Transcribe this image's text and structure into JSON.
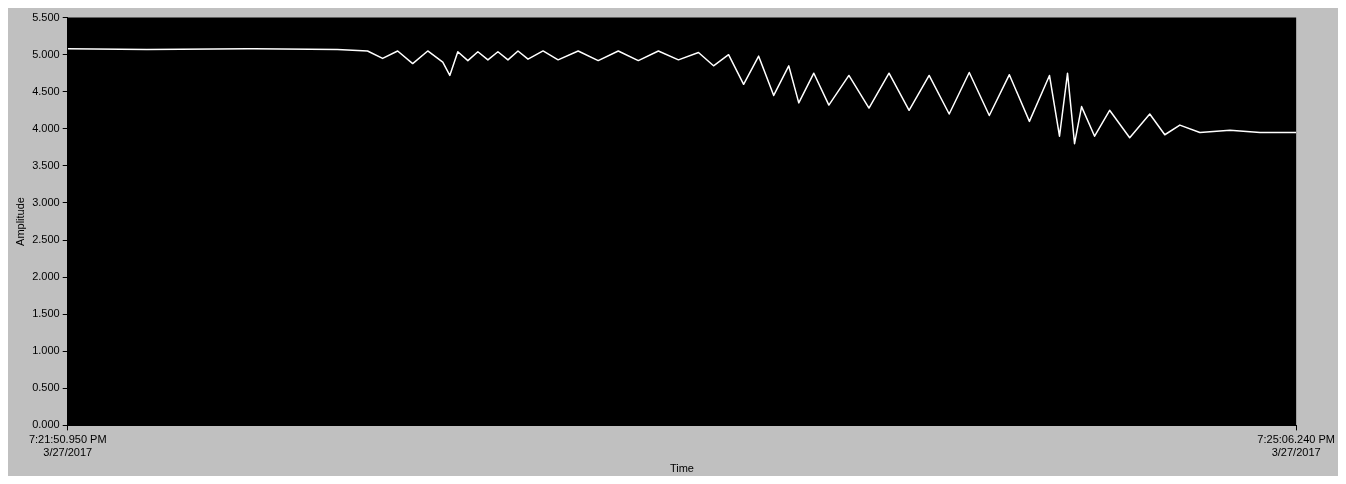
{
  "chart_data": {
    "type": "line",
    "xlabel": "Time",
    "ylabel": "Amplitude",
    "x": [
      "2017-03-27T19:21:50.950",
      "2017-03-27T19:22:03.544",
      "2017-03-27T19:22:19.486",
      "2017-03-27T19:22:33.834",
      "2017-03-27T19:22:38.617",
      "2017-03-27T19:22:41.008",
      "2017-03-27T19:22:43.399",
      "2017-03-27T19:22:45.790",
      "2017-03-27T19:22:48.182",
      "2017-03-27T19:22:50.573",
      "2017-03-27T19:22:51.689",
      "2017-03-27T19:22:52.964",
      "2017-03-27T19:22:54.559",
      "2017-03-27T19:22:56.153",
      "2017-03-27T19:22:57.747",
      "2017-03-27T19:22:59.341",
      "2017-03-27T19:23:00.935",
      "2017-03-27T19:23:02.530",
      "2017-03-27T19:23:04.124",
      "2017-03-27T19:23:06.515",
      "2017-03-27T19:23:08.906",
      "2017-03-27T19:23:12.095",
      "2017-03-27T19:23:15.283",
      "2017-03-27T19:23:18.472",
      "2017-03-27T19:23:21.660",
      "2017-03-27T19:23:24.848",
      "2017-03-27T19:23:28.037",
      "2017-03-27T19:23:31.225",
      "2017-03-27T19:23:33.616",
      "2017-03-27T19:23:36.008",
      "2017-03-27T19:23:38.399",
      "2017-03-27T19:23:40.790",
      "2017-03-27T19:23:43.182",
      "2017-03-27T19:23:45.573",
      "2017-03-27T19:23:47.167",
      "2017-03-27T19:23:49.558",
      "2017-03-27T19:23:51.950",
      "2017-03-27T19:23:55.138",
      "2017-03-27T19:23:58.327",
      "2017-03-27T19:24:01.515",
      "2017-03-27T19:24:04.703",
      "2017-03-27T19:24:07.892",
      "2017-03-27T19:24:11.080",
      "2017-03-27T19:24:14.269",
      "2017-03-27T19:24:17.457",
      "2017-03-27T19:24:20.645",
      "2017-03-27T19:24:23.834",
      "2017-03-27T19:24:27.022",
      "2017-03-27T19:24:28.616",
      "2017-03-27T19:24:29.892",
      "2017-03-27T19:24:31.008",
      "2017-03-27T19:24:32.124",
      "2017-03-27T19:24:34.196",
      "2017-03-27T19:24:36.587",
      "2017-03-27T19:24:39.776",
      "2017-03-27T19:24:42.964",
      "2017-03-27T19:24:45.355",
      "2017-03-27T19:24:47.747",
      "2017-03-27T19:24:50.935",
      "2017-03-27T19:24:55.718",
      "2017-03-27T19:25:00.500",
      "2017-03-27T19:25:06.240"
    ],
    "series": [
      {
        "color": "#ffffff",
        "values": [
          5.08,
          5.07,
          5.08,
          5.07,
          5.05,
          4.95,
          5.05,
          4.88,
          5.05,
          4.9,
          4.72,
          5.04,
          4.92,
          5.04,
          4.93,
          5.04,
          4.93,
          5.05,
          4.94,
          5.05,
          4.93,
          5.05,
          4.92,
          5.05,
          4.92,
          5.05,
          4.93,
          5.03,
          4.85,
          5.0,
          4.6,
          4.98,
          4.45,
          4.85,
          4.35,
          4.75,
          4.32,
          4.72,
          4.28,
          4.75,
          4.25,
          4.72,
          4.2,
          4.76,
          4.18,
          4.73,
          4.1,
          4.72,
          3.9,
          4.75,
          3.8,
          4.3,
          3.9,
          4.25,
          3.88,
          4.2,
          3.92,
          4.05,
          3.95,
          3.98,
          3.95,
          3.95
        ]
      }
    ],
    "xlim": [
      "2017-03-27T19:21:50.950",
      "2017-03-27T19:25:06.240"
    ],
    "xticks": [
      {
        "value": "2017-03-27T19:21:50.950",
        "label": "7:21:50.950 PM\n3/27/2017"
      },
      {
        "value": "2017-03-27T19:25:06.240",
        "label": "7:25:06.240 PM\n3/27/2017"
      }
    ],
    "ylim": [
      0,
      5.5
    ],
    "yticks": [
      {
        "value": 0,
        "label": "0.000"
      },
      {
        "value": 0.5,
        "label": "0.500"
      },
      {
        "value": 1,
        "label": "1.000"
      },
      {
        "value": 1.5,
        "label": "1.500"
      },
      {
        "value": 2,
        "label": "2.000"
      },
      {
        "value": 2.5,
        "label": "2.500"
      },
      {
        "value": 3,
        "label": "3.000"
      },
      {
        "value": 3.5,
        "label": "3.500"
      },
      {
        "value": 4,
        "label": "4.000"
      },
      {
        "value": 4.5,
        "label": "4.500"
      },
      {
        "value": 5,
        "label": "5.000"
      },
      {
        "value": 5.5,
        "label": "5.500"
      }
    ],
    "grid": false,
    "legend": false,
    "marker": "none",
    "line_style": "solid"
  }
}
